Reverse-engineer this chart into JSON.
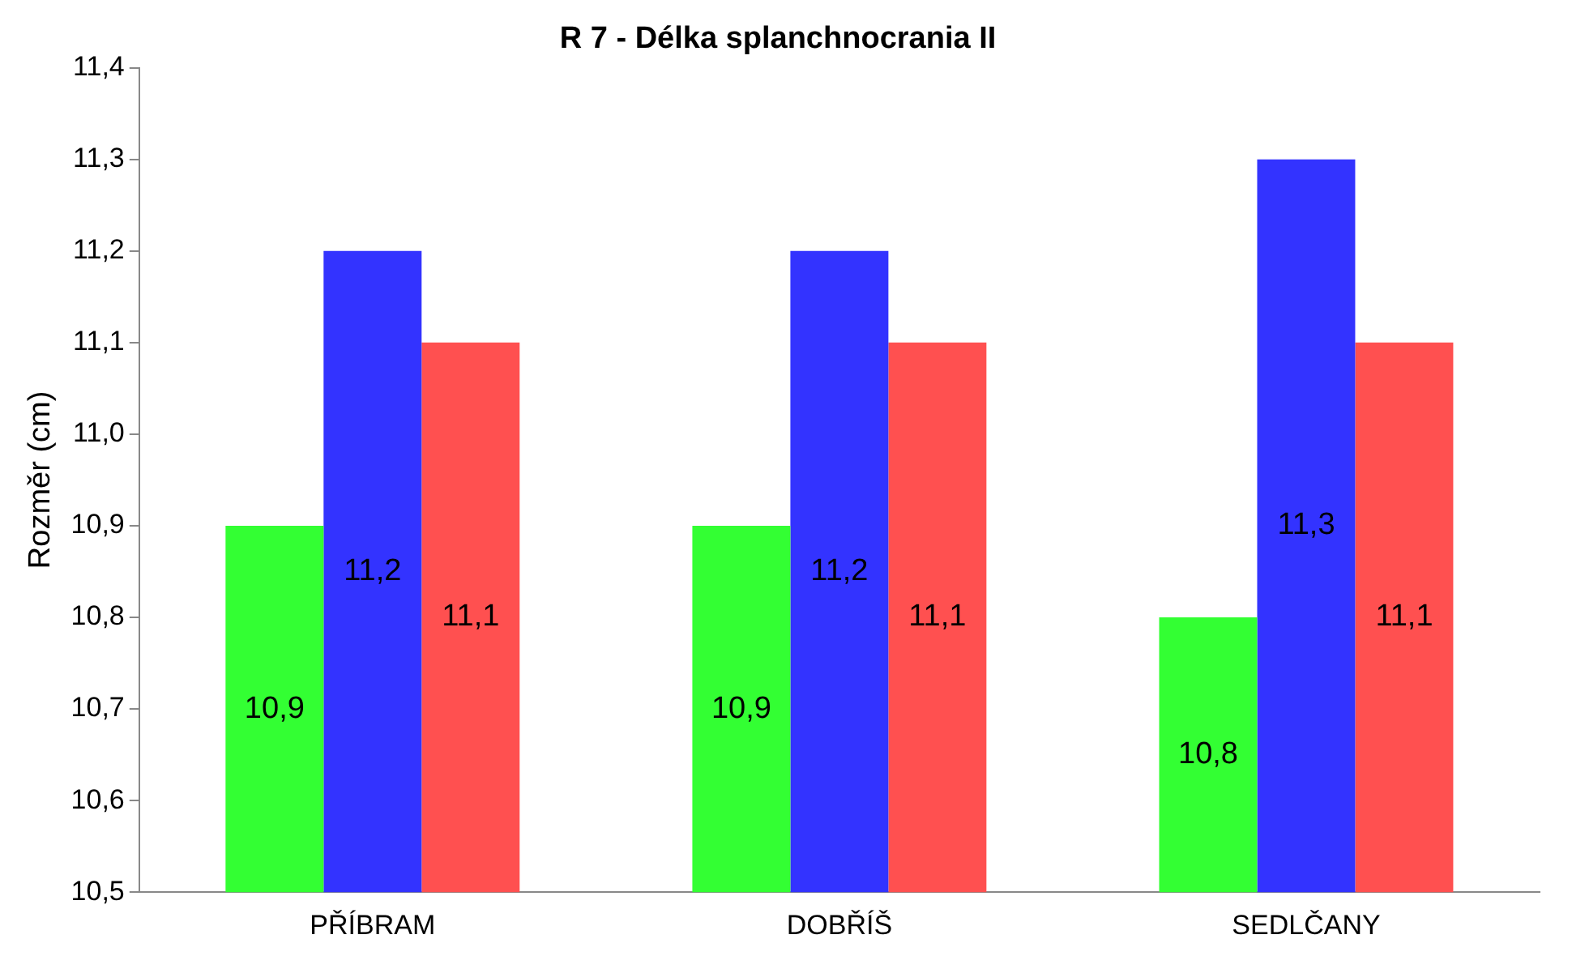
{
  "chart_data": {
    "type": "bar",
    "title": "R 7 - Délka splanchnocrania II",
    "ylabel": "Rozměr (cm)",
    "categories": [
      "PŘÍBRAM",
      "DOBŘÍŠ",
      "SEDLČANY"
    ],
    "series": [
      {
        "color": "#33ff33",
        "values": [
          10.9,
          10.9,
          10.8
        ],
        "value_labels": [
          "10,9",
          "10,9",
          "10,8"
        ]
      },
      {
        "color": "#3333ff",
        "values": [
          11.2,
          11.2,
          11.3
        ],
        "value_labels": [
          "11,2",
          "11,2",
          "11,3"
        ]
      },
      {
        "color": "#ff5050",
        "values": [
          11.1,
          11.1,
          11.1
        ],
        "value_labels": [
          "11,1",
          "11,1",
          "11,1"
        ]
      }
    ],
    "ylim": [
      10.5,
      11.4
    ],
    "yticks": [
      {
        "value": 10.5,
        "label": "10,5"
      },
      {
        "value": 10.6,
        "label": "10,6"
      },
      {
        "value": 10.7,
        "label": "10,7"
      },
      {
        "value": 10.8,
        "label": "10,8"
      },
      {
        "value": 10.9,
        "label": "10,9"
      },
      {
        "value": 11.0,
        "label": "11,0"
      },
      {
        "value": 11.1,
        "label": "11,1"
      },
      {
        "value": 11.2,
        "label": "11,2"
      },
      {
        "value": 11.3,
        "label": "11,3"
      },
      {
        "value": 11.4,
        "label": "11,4"
      }
    ],
    "grid": false,
    "legend": false
  }
}
